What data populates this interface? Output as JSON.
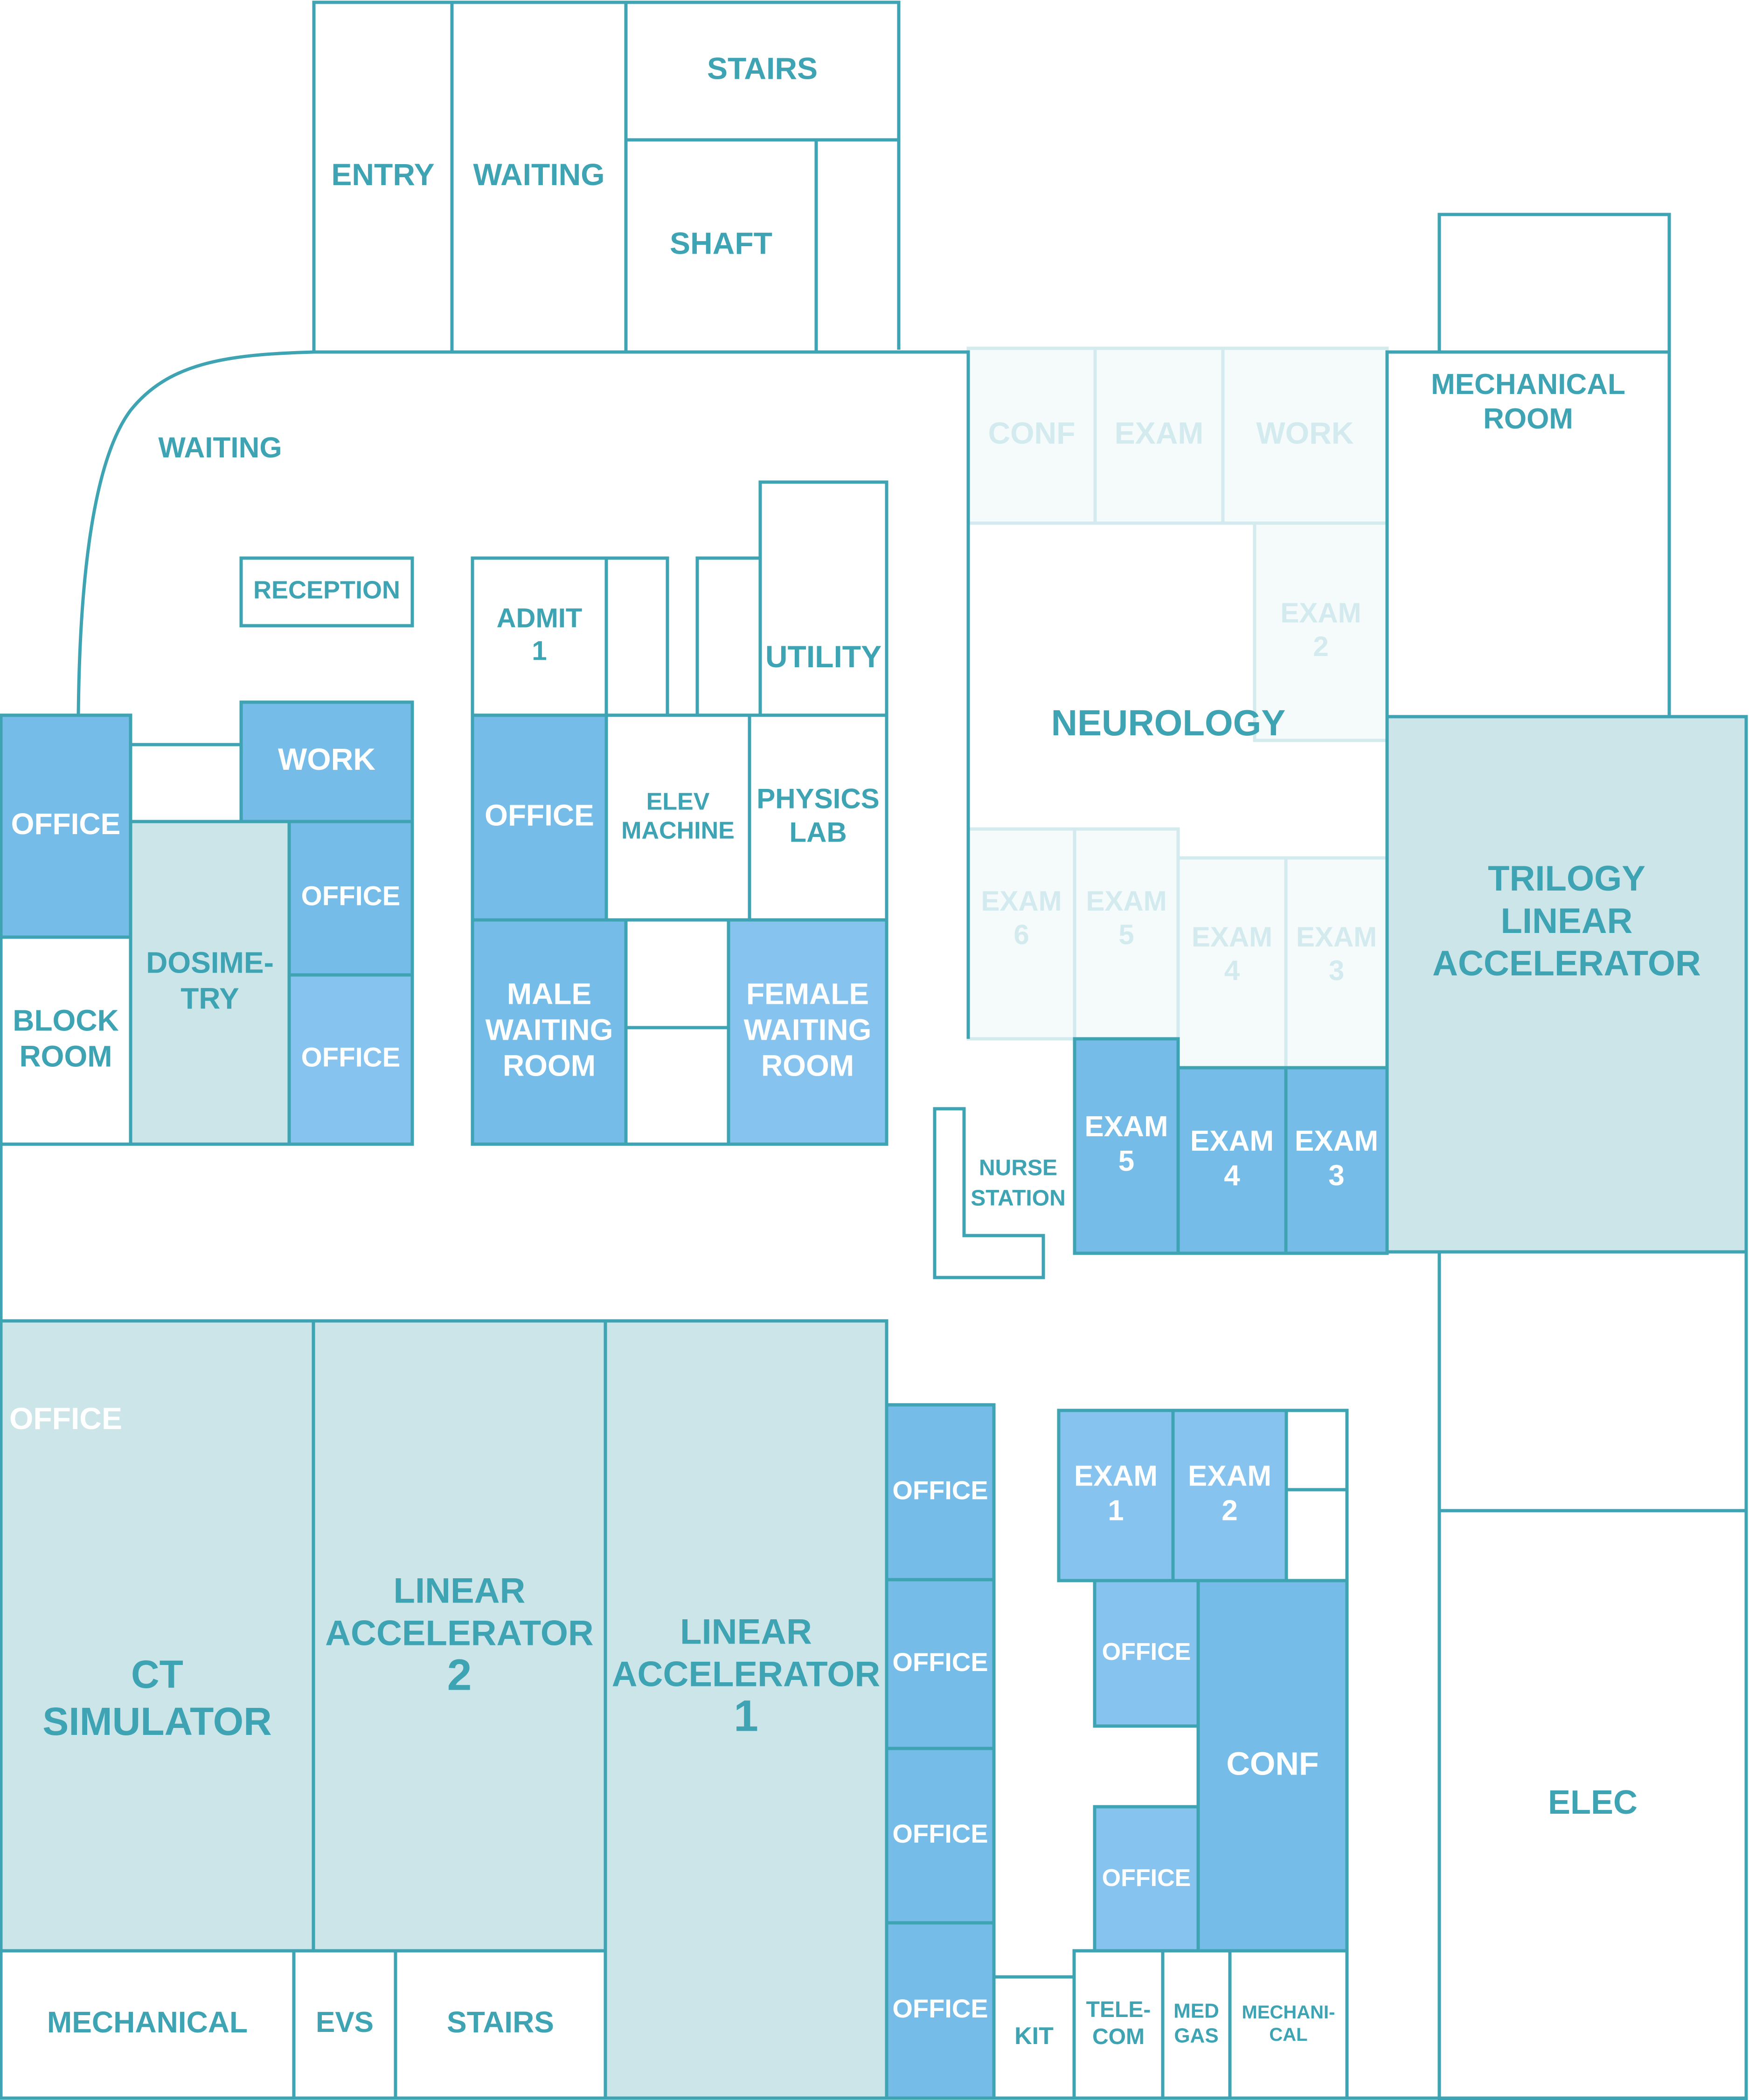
{
  "colors": {
    "line": "#3ea4b4",
    "line_faded": "#d3ebef",
    "label": "#3ea4b4",
    "label_on_dark": "#ffffff",
    "label_faded": "#d3ebef",
    "fill_white": "#ffffff",
    "fill_teal": "#cce5e9",
    "fill_blue": "#75bce8",
    "fill_blue_light": "#86c3ee",
    "fill_faded": "#f5fafb"
  },
  "rooms": {
    "entry": {
      "label": "ENTRY"
    },
    "waiting_top": {
      "label": "WAITING"
    },
    "stairs_top": {
      "label": "STAIRS"
    },
    "shaft": {
      "label": "SHAFT"
    },
    "waiting_lobby": {
      "label": "WAITING"
    },
    "reception": {
      "label": "RECEPTION"
    },
    "admit_1": {
      "label": [
        "ADMIT",
        "1"
      ]
    },
    "utility": {
      "label": "UTILITY"
    },
    "office_west": {
      "label": "OFFICE"
    },
    "work": {
      "label": "WORK"
    },
    "office_dos_1": {
      "label": "OFFICE"
    },
    "office_dos_2": {
      "label": "OFFICE"
    },
    "dosimetry": {
      "label": [
        "DOSIME-",
        "TRY"
      ]
    },
    "block_room": {
      "label": [
        "BLOCK",
        "ROOM"
      ]
    },
    "office_mid": {
      "label": "OFFICE"
    },
    "elev_machine": {
      "label": [
        "ELEV",
        "MACHINE"
      ]
    },
    "physics_lab": {
      "label": [
        "PHYSICS",
        "LAB"
      ]
    },
    "male_waiting": {
      "label": [
        "MALE",
        "WAITING",
        "ROOM"
      ]
    },
    "female_waiting": {
      "label": [
        "FEMALE",
        "WAITING",
        "ROOM"
      ]
    },
    "neuro_conf": {
      "label": "CONF"
    },
    "neuro_exam": {
      "label": "EXAM"
    },
    "neuro_work": {
      "label": "WORK"
    },
    "neuro_exam_2": {
      "label": [
        "EXAM",
        "2"
      ]
    },
    "neurology": {
      "label": "NEUROLOGY"
    },
    "neuro_exam_6": {
      "label": [
        "EXAM",
        "6"
      ]
    },
    "neuro_exam_5": {
      "label": [
        "EXAM",
        "5"
      ]
    },
    "neuro_exam_4": {
      "label": [
        "EXAM",
        "4"
      ]
    },
    "neuro_exam_3": {
      "label": [
        "EXAM",
        "3"
      ]
    },
    "mechanical_room": {
      "label": [
        "MECHANICAL",
        "ROOM"
      ]
    },
    "trilogy": {
      "label": [
        "TRILOGY",
        "LINEAR",
        "ACCELERATOR"
      ]
    },
    "nurse_station": {
      "label": [
        "NURSE",
        "STATION"
      ]
    },
    "exam_5": {
      "label": [
        "EXAM",
        "5"
      ]
    },
    "exam_4": {
      "label": [
        "EXAM",
        "4"
      ]
    },
    "exam_3": {
      "label": [
        "EXAM",
        "3"
      ]
    },
    "office_ct": {
      "label": "OFFICE"
    },
    "ct_simulator": {
      "label": [
        "CT",
        "SIMULATOR"
      ]
    },
    "linac_2": {
      "label": [
        "LINEAR",
        "ACCELERATOR",
        "2"
      ]
    },
    "linac_1": {
      "label": [
        "LINEAR",
        "ACCELERATOR",
        "1"
      ]
    },
    "office_col_1": {
      "label": "OFFICE"
    },
    "office_col_2": {
      "label": "OFFICE"
    },
    "office_col_3": {
      "label": "OFFICE"
    },
    "office_col_4": {
      "label": "OFFICE"
    },
    "exam_1": {
      "label": [
        "EXAM",
        "1"
      ]
    },
    "exam_2": {
      "label": [
        "EXAM",
        "2"
      ]
    },
    "office_conf_1": {
      "label": "OFFICE"
    },
    "office_conf_2": {
      "label": "OFFICE"
    },
    "conf": {
      "label": "CONF"
    },
    "elec": {
      "label": "ELEC"
    },
    "mechanical_bottom": {
      "label": "MECHANICAL"
    },
    "evs": {
      "label": "EVS"
    },
    "stairs_bottom": {
      "label": "STAIRS"
    },
    "kit": {
      "label": "KIT"
    },
    "telecom": {
      "label": [
        "TELE-",
        "COM"
      ]
    },
    "med_gas": {
      "label": [
        "MED",
        "GAS"
      ]
    },
    "mechanical_small": {
      "label": [
        "MECHANI-",
        "CAL"
      ]
    }
  }
}
